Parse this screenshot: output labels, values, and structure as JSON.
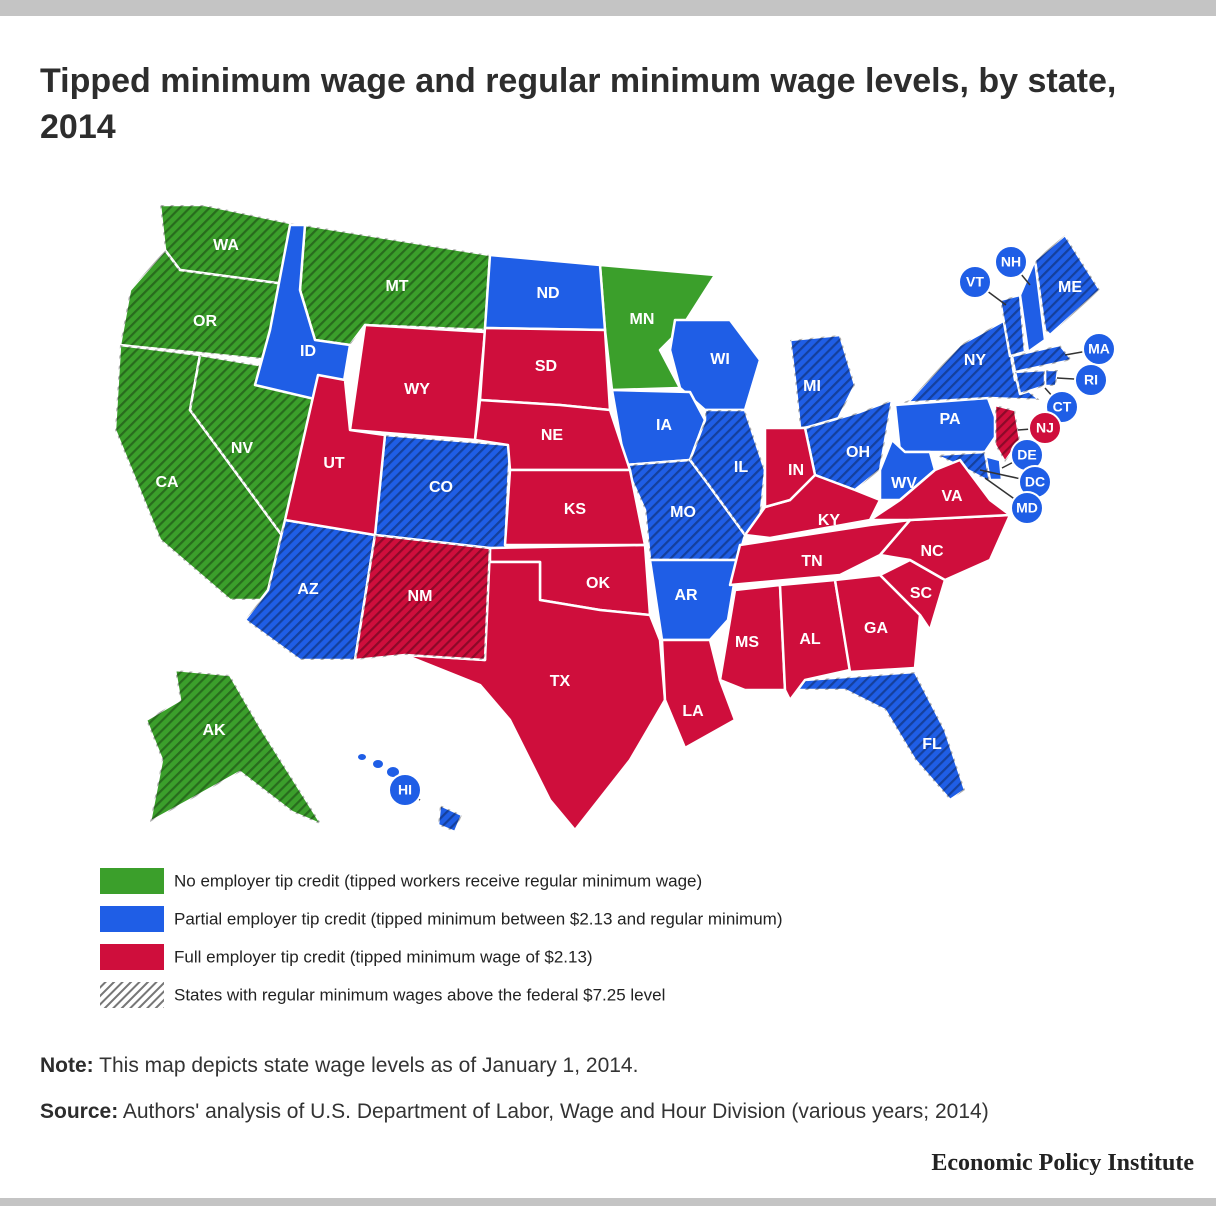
{
  "title": "Tipped minimum wage and regular minimum wage levels, by state, 2014",
  "legend": [
    {
      "label": "No employer tip credit (tipped workers receive regular minimum wage)",
      "color": "#3b9f2b"
    },
    {
      "label": "Partial employer tip credit (tipped minimum between $2.13 and regular minimum)",
      "color": "#1f5ee6"
    },
    {
      "label": "Full employer tip credit (tipped minimum wage of $2.13)",
      "color": "#cf0e3c"
    }
  ],
  "hatch_label": "States with regular minimum wages above the federal $7.25 level",
  "states": [
    {
      "abbr": "WA",
      "color": "#3b9f2b",
      "hatched": true
    },
    {
      "abbr": "OR",
      "color": "#3b9f2b",
      "hatched": true
    },
    {
      "abbr": "CA",
      "color": "#3b9f2b",
      "hatched": true
    },
    {
      "abbr": "NV",
      "color": "#3b9f2b",
      "hatched": true
    },
    {
      "abbr": "MT",
      "color": "#3b9f2b",
      "hatched": true
    },
    {
      "abbr": "MN",
      "color": "#3b9f2b",
      "hatched": false
    },
    {
      "abbr": "AK",
      "color": "#3b9f2b",
      "hatched": true
    },
    {
      "abbr": "ID",
      "color": "#1f5ee6",
      "hatched": false
    },
    {
      "abbr": "ND",
      "color": "#1f5ee6",
      "hatched": false
    },
    {
      "abbr": "WI",
      "color": "#1f5ee6",
      "hatched": false
    },
    {
      "abbr": "IA",
      "color": "#1f5ee6",
      "hatched": false
    },
    {
      "abbr": "MO",
      "color": "#1f5ee6",
      "hatched": true
    },
    {
      "abbr": "IL",
      "color": "#1f5ee6",
      "hatched": true
    },
    {
      "abbr": "MI",
      "color": "#1f5ee6",
      "hatched": true
    },
    {
      "abbr": "OH",
      "color": "#1f5ee6",
      "hatched": true
    },
    {
      "abbr": "PA",
      "color": "#1f5ee6",
      "hatched": false
    },
    {
      "abbr": "NY",
      "color": "#1f5ee6",
      "hatched": true
    },
    {
      "abbr": "VT",
      "color": "#1f5ee6",
      "hatched": true
    },
    {
      "abbr": "NH",
      "color": "#1f5ee6",
      "hatched": false
    },
    {
      "abbr": "ME",
      "color": "#1f5ee6",
      "hatched": true
    },
    {
      "abbr": "MA",
      "color": "#1f5ee6",
      "hatched": true
    },
    {
      "abbr": "RI",
      "color": "#1f5ee6",
      "hatched": true
    },
    {
      "abbr": "CT",
      "color": "#1f5ee6",
      "hatched": true
    },
    {
      "abbr": "DE",
      "color": "#1f5ee6",
      "hatched": false
    },
    {
      "abbr": "DC",
      "color": "#1f5ee6",
      "hatched": true
    },
    {
      "abbr": "MD",
      "color": "#1f5ee6",
      "hatched": true
    },
    {
      "abbr": "WV",
      "color": "#1f5ee6",
      "hatched": false
    },
    {
      "abbr": "CO",
      "color": "#1f5ee6",
      "hatched": true
    },
    {
      "abbr": "AZ",
      "color": "#1f5ee6",
      "hatched": true
    },
    {
      "abbr": "AR",
      "color": "#1f5ee6",
      "hatched": false
    },
    {
      "abbr": "FL",
      "color": "#1f5ee6",
      "hatched": true
    },
    {
      "abbr": "HI",
      "color": "#1f5ee6",
      "hatched": true
    },
    {
      "abbr": "WY",
      "color": "#cf0e3c",
      "hatched": false
    },
    {
      "abbr": "UT",
      "color": "#cf0e3c",
      "hatched": false
    },
    {
      "abbr": "SD",
      "color": "#cf0e3c",
      "hatched": false
    },
    {
      "abbr": "NE",
      "color": "#cf0e3c",
      "hatched": false
    },
    {
      "abbr": "KS",
      "color": "#cf0e3c",
      "hatched": false
    },
    {
      "abbr": "OK",
      "color": "#cf0e3c",
      "hatched": false
    },
    {
      "abbr": "TX",
      "color": "#cf0e3c",
      "hatched": false
    },
    {
      "abbr": "NM",
      "color": "#cf0e3c",
      "hatched": true
    },
    {
      "abbr": "LA",
      "color": "#cf0e3c",
      "hatched": false
    },
    {
      "abbr": "MS",
      "color": "#cf0e3c",
      "hatched": false
    },
    {
      "abbr": "AL",
      "color": "#cf0e3c",
      "hatched": false
    },
    {
      "abbr": "GA",
      "color": "#cf0e3c",
      "hatched": false
    },
    {
      "abbr": "SC",
      "color": "#cf0e3c",
      "hatched": false
    },
    {
      "abbr": "NC",
      "color": "#cf0e3c",
      "hatched": false
    },
    {
      "abbr": "VA",
      "color": "#cf0e3c",
      "hatched": false
    },
    {
      "abbr": "TN",
      "color": "#cf0e3c",
      "hatched": false
    },
    {
      "abbr": "KY",
      "color": "#cf0e3c",
      "hatched": false
    },
    {
      "abbr": "IN",
      "color": "#cf0e3c",
      "hatched": false
    },
    {
      "abbr": "NJ",
      "color": "#cf0e3c",
      "hatched": true
    }
  ],
  "note": {
    "label": "Note:",
    "text": "This map depicts state wage levels as of January 1, 2014."
  },
  "source": {
    "label": "Source:",
    "text": "Authors' analysis of U.S. Department of Labor, Wage and Hour Division (various years; 2014)"
  },
  "footer": "Economic Policy Institute"
}
